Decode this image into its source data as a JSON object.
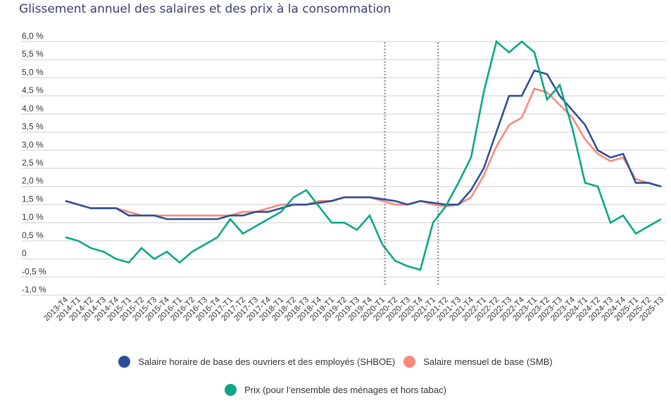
{
  "chart_data": {
    "type": "line",
    "title": "Glissement annuel des salaires et des prix à la consommation",
    "xlabel": "",
    "ylabel": "",
    "ylim": [
      -1.0,
      6.0
    ],
    "grid": true,
    "legend_position": "bottom",
    "y_ticks": [
      {
        "value": 6.0,
        "label": "6,0 %"
      },
      {
        "value": 5.5,
        "label": "5,5 %"
      },
      {
        "value": 5.0,
        "label": "5,0 %"
      },
      {
        "value": 4.5,
        "label": "4,5 %"
      },
      {
        "value": 4.0,
        "label": "4,0 %"
      },
      {
        "value": 3.5,
        "label": "3,5 %"
      },
      {
        "value": 3.0,
        "label": "3,0 %"
      },
      {
        "value": 2.5,
        "label": "2,5 %"
      },
      {
        "value": 2.0,
        "label": "2,0 %"
      },
      {
        "value": 1.5,
        "label": "1,5 %"
      },
      {
        "value": 1.0,
        "label": "1,0 %"
      },
      {
        "value": 0.5,
        "label": "0,5 %"
      },
      {
        "value": 0,
        "label": "0"
      },
      {
        "value": -0.5,
        "label": "-0,5 %"
      },
      {
        "value": -1.0,
        "label": "-1,0 %"
      }
    ],
    "categories": [
      "2013-T4",
      "2014-T1",
      "2014-T2",
      "2014-T3",
      "2014-T4",
      "2015-T1",
      "2015-T2",
      "2015-T3",
      "2015-T4",
      "2016-T1",
      "2016-T2",
      "2016-T3",
      "2016-T4",
      "2017-T1",
      "2017-T2",
      "2017-T3",
      "2017-T4",
      "2018-T1",
      "2018-T2",
      "2018-T3",
      "2018-T4",
      "2019-T1",
      "2019-T2",
      "2019-T3",
      "2019-T4",
      "2020-T1",
      "2020-T2",
      "2020-T3",
      "2020-T4",
      "2021-T1",
      "2021-T2",
      "2021-T3",
      "2021-T4",
      "2022-T1",
      "2022-T2",
      "2022-T3",
      "2022-T4",
      "2023-T1",
      "2023-T2",
      "2023-T3",
      "2023-T4",
      "2024-T1",
      "2024-T2",
      "2024-T3",
      "2024-T4",
      "2025-T1",
      "2025-T2",
      "2025-T3"
    ],
    "annotations": [
      {
        "type": "vertical-dotted-line",
        "x_index": 25.2
      },
      {
        "type": "vertical-dotted-line",
        "x_index": 29.4
      }
    ],
    "series": [
      {
        "name": "Salaire horaire de base des ouvriers et des employés (SHBOE)",
        "color": "#2d4f96",
        "values": [
          1.6,
          1.5,
          1.4,
          1.4,
          1.4,
          1.2,
          1.2,
          1.2,
          1.1,
          1.1,
          1.1,
          1.1,
          1.1,
          1.2,
          1.2,
          1.3,
          1.3,
          1.4,
          1.5,
          1.5,
          1.55,
          1.6,
          1.7,
          1.7,
          1.7,
          1.65,
          1.6,
          1.5,
          1.6,
          1.55,
          1.5,
          1.5,
          1.9,
          2.5,
          3.5,
          4.5,
          4.5,
          5.2,
          5.1,
          4.5,
          4.1,
          3.7,
          3.0,
          2.8,
          2.9,
          2.1,
          2.1,
          2.0
        ]
      },
      {
        "name": "Salaire mensuel de base (SMB)",
        "color": "#f98a7a",
        "values": [
          1.6,
          1.5,
          1.4,
          1.4,
          1.4,
          1.3,
          1.2,
          1.2,
          1.2,
          1.2,
          1.2,
          1.2,
          1.2,
          1.2,
          1.3,
          1.3,
          1.4,
          1.5,
          1.5,
          1.5,
          1.6,
          1.6,
          1.7,
          1.7,
          1.7,
          1.6,
          1.5,
          1.5,
          1.6,
          1.5,
          1.45,
          1.5,
          1.7,
          2.3,
          3.1,
          3.7,
          3.9,
          4.7,
          4.6,
          4.25,
          3.9,
          3.3,
          2.9,
          2.7,
          2.8,
          2.2,
          2.1,
          2.0
        ]
      },
      {
        "name": "Prix (pour l’ensemble des ménages et hors tabac)",
        "color": "#0aa787",
        "values": [
          0.6,
          0.5,
          0.3,
          0.2,
          0.0,
          -0.1,
          0.3,
          0.0,
          0.2,
          -0.1,
          0.2,
          0.4,
          0.6,
          1.1,
          0.7,
          0.9,
          1.1,
          1.3,
          1.7,
          1.9,
          1.45,
          1.0,
          1.0,
          0.8,
          1.2,
          0.4,
          -0.05,
          -0.2,
          -0.3,
          1.0,
          1.45,
          2.1,
          2.8,
          4.6,
          6.0,
          5.7,
          6.0,
          5.7,
          4.4,
          4.8,
          3.6,
          2.1,
          2.0,
          1.0,
          1.2,
          0.7,
          0.9,
          1.1
        ]
      }
    ]
  },
  "legend": {
    "items": [
      {
        "label": "Salaire horaire de base des ouvriers et des employés (SHBOE)",
        "color": "#2d4f96"
      },
      {
        "label": "Salaire mensuel de base (SMB)",
        "color": "#f98a7a"
      },
      {
        "label": "Prix (pour l’ensemble des ménages et hors tabac)",
        "color": "#0aa787"
      }
    ]
  }
}
